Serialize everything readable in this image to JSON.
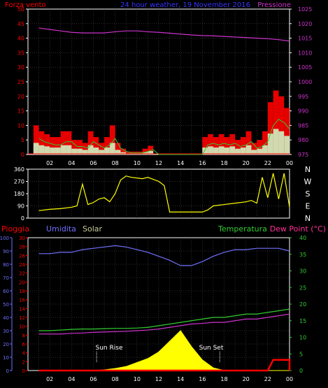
{
  "colors": {
    "background": "#000000",
    "axis": "#ffffff",
    "grid": "#5a5a5a",
    "wind_avg": "#ff0000",
    "wind_gust": "#9a9a9a",
    "wind_low": "#ccffcc",
    "wind_trend": "#33cc33",
    "pressure": "#cc33cc",
    "direction": "#ffff00",
    "humidity": "#7070ff",
    "temperature": "#33cc33",
    "dew_point": "#cc33cc",
    "rain": "#ff0000",
    "solar": "#ffff00",
    "title": "#3333ff",
    "annotation": "#ffffff"
  },
  "chart_data": [
    {
      "type": "line",
      "title": "24 hour weather, 19 November 2016",
      "left_label": "Forza vento",
      "right_label": "Pressione",
      "x_tick_labels": [
        "02",
        "04",
        "06",
        "08",
        "10",
        "12",
        "14",
        "16",
        "18",
        "20",
        "22",
        "00"
      ],
      "y_left_ticks": [
        "0",
        "5",
        "10",
        "15",
        "20",
        "25",
        "30",
        "35",
        "40",
        "45",
        "50"
      ],
      "y_right_ticks": [
        "975",
        "980",
        "985",
        "990",
        "995",
        "1000",
        "1005",
        "1010",
        "1015",
        "1020",
        "1025"
      ],
      "ylim_left": [
        0,
        50
      ],
      "ylim_right": [
        975,
        1025
      ],
      "series": [
        {
          "key": "wind",
          "x": [
            1,
            1.5,
            2,
            2.5,
            3,
            3.5,
            4,
            4.5,
            5,
            5.5,
            6,
            6.5,
            7,
            7.5,
            8,
            8.5,
            9,
            9.5,
            10,
            10.5,
            11,
            11.5,
            12,
            12.5,
            13,
            13.5,
            14,
            14.5,
            15,
            15.5,
            16,
            16.5,
            17,
            17.5,
            18,
            18.5,
            19,
            19.5,
            20,
            20.5,
            21,
            21.5,
            22,
            22.5,
            23,
            23.5,
            24
          ],
          "values": [
            10,
            8,
            7,
            6,
            6,
            8,
            8,
            5,
            5,
            4,
            8,
            6,
            4,
            6,
            10,
            4,
            2,
            1,
            1,
            1,
            2,
            3,
            0,
            0,
            0,
            0,
            0,
            0,
            0,
            0,
            0,
            6,
            7,
            6,
            7,
            6,
            7,
            5,
            6,
            8,
            4,
            5,
            8,
            18,
            22,
            20,
            16
          ]
        },
        {
          "key": "pressure",
          "x": [
            1,
            2,
            3,
            4,
            5,
            6,
            7,
            8,
            9,
            10,
            11,
            12,
            13,
            14,
            15,
            16,
            17,
            18,
            19,
            20,
            21,
            22,
            23,
            24
          ],
          "values": [
            1018.5,
            1018,
            1017.5,
            1017,
            1016.8,
            1016.8,
            1016.8,
            1017.2,
            1017.5,
            1017.5,
            1017.2,
            1017,
            1016.7,
            1016.4,
            1016.1,
            1015.9,
            1015.8,
            1015.6,
            1015.4,
            1015.2,
            1015,
            1014.8,
            1014.5,
            1014
          ]
        }
      ]
    },
    {
      "type": "line",
      "y_left_ticks": [
        "0",
        "90",
        "180",
        "270",
        "360"
      ],
      "ylim": [
        0,
        360
      ],
      "compass_labels": [
        "N",
        "W",
        "S",
        "E",
        "N"
      ],
      "series": [
        {
          "key": "direction",
          "x": [
            1,
            2,
            3,
            4,
            4.5,
            5,
            5.5,
            6,
            6.5,
            7,
            7.5,
            8,
            8.5,
            9,
            9.5,
            10,
            10.5,
            11,
            11.5,
            12,
            12.5,
            13,
            14,
            15,
            16,
            16.5,
            17,
            18,
            19,
            20,
            20.5,
            21,
            21.5,
            22,
            22.5,
            23,
            23.5,
            24
          ],
          "values": [
            55,
            65,
            70,
            80,
            90,
            250,
            100,
            115,
            140,
            150,
            120,
            180,
            280,
            310,
            300,
            295,
            290,
            300,
            285,
            270,
            240,
            45,
            45,
            45,
            45,
            60,
            90,
            100,
            110,
            120,
            130,
            110,
            300,
            150,
            330,
            140,
            330,
            80
          ]
        }
      ]
    },
    {
      "type": "line",
      "left_labels": [
        "Pioggia",
        "Umidita",
        "Solar"
      ],
      "right_labels": [
        "Temperatura",
        "Dew Point (°C)"
      ],
      "y_left_outer_ticks": [
        "0",
        "10",
        "20",
        "30",
        "40",
        "50",
        "60",
        "70",
        "80",
        "90",
        "100"
      ],
      "y_left_inner_ticks": [
        "0",
        "2",
        "4",
        "6",
        "8",
        "10",
        "12",
        "14",
        "16",
        "18",
        "20",
        "22",
        "24",
        "26",
        "28",
        "30"
      ],
      "y_right_ticks": [
        "0",
        "5",
        "10",
        "15",
        "20",
        "25",
        "30",
        "35",
        "40"
      ],
      "ylim_humidity": [
        0,
        100
      ],
      "ylim_temperature": [
        0,
        40
      ],
      "annotations": [
        "Sun Rise",
        "Sun Set"
      ],
      "series": [
        {
          "key": "humidity",
          "x": [
            1,
            2,
            3,
            4,
            5,
            6,
            7,
            8,
            9,
            10,
            11,
            12,
            13,
            14,
            15,
            16,
            17,
            18,
            19,
            20,
            21,
            22,
            23,
            24
          ],
          "values": [
            88,
            88,
            89,
            89,
            91,
            92,
            93,
            94,
            93,
            91,
            89,
            86,
            83,
            79,
            79,
            82,
            86,
            89,
            91,
            91,
            92,
            92,
            92,
            90
          ]
        },
        {
          "key": "temperature",
          "x": [
            1,
            2,
            3,
            4,
            5,
            6,
            7,
            8,
            9,
            10,
            11,
            12,
            13,
            14,
            15,
            16,
            17,
            18,
            19,
            20,
            21,
            22,
            23,
            24
          ],
          "values": [
            12,
            12,
            12.2,
            12.4,
            12.5,
            12.5,
            12.6,
            12.7,
            12.7,
            12.8,
            13,
            13.5,
            14,
            14.5,
            15,
            15.5,
            16,
            16,
            16.5,
            17,
            17,
            17.5,
            18,
            18.5
          ]
        },
        {
          "key": "dew_point",
          "x": [
            1,
            2,
            3,
            4,
            5,
            6,
            7,
            8,
            9,
            10,
            11,
            12,
            13,
            14,
            15,
            16,
            17,
            18,
            19,
            20,
            21,
            22,
            23,
            24
          ],
          "values": [
            11,
            11,
            11,
            11.2,
            11.3,
            11.5,
            11.6,
            11.7,
            11.8,
            12,
            12.2,
            12.5,
            13,
            13.5,
            14,
            14.2,
            14.5,
            14.5,
            15,
            15.5,
            15.5,
            16,
            16.5,
            17
          ]
        },
        {
          "key": "solar",
          "x": [
            1,
            6,
            7,
            8,
            9,
            10,
            11,
            12,
            13,
            14,
            15,
            16,
            17,
            18,
            24
          ],
          "values": [
            0,
            0,
            0.5,
            1.5,
            3,
            6,
            9,
            14,
            22,
            30,
            18,
            8,
            2,
            0,
            0
          ]
        },
        {
          "key": "rain",
          "x": [
            1,
            2,
            3,
            4,
            5,
            6,
            7,
            8,
            9,
            10,
            11,
            12,
            13,
            14,
            15,
            16,
            17,
            18,
            19,
            20,
            21,
            22,
            22.5,
            23,
            24
          ],
          "values": [
            0,
            0,
            0,
            0,
            0,
            0,
            0,
            0,
            0,
            0,
            0,
            0,
            0,
            0,
            0,
            0,
            0,
            0,
            0,
            0,
            0,
            0,
            8,
            8,
            8
          ]
        }
      ]
    }
  ]
}
